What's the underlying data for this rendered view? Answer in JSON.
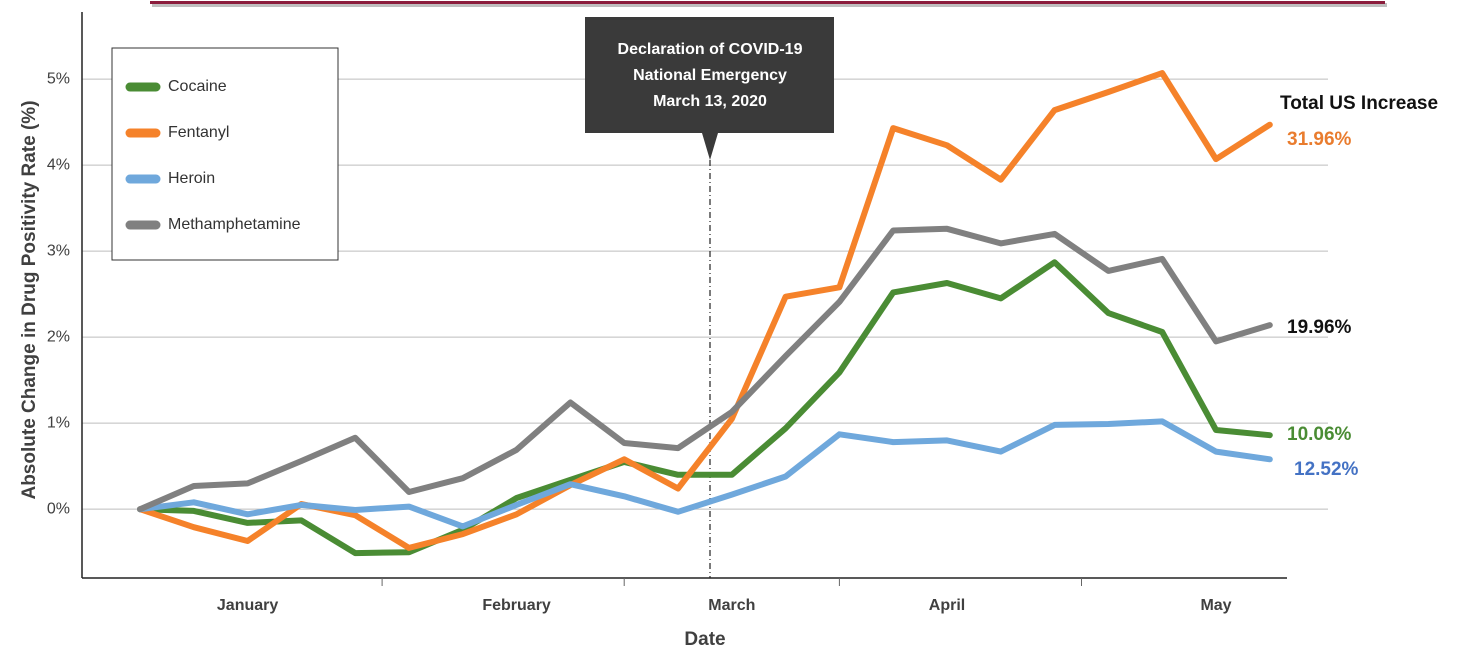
{
  "chart_data": {
    "type": "line",
    "y_label": "Absolute Change in Drug Positivity Rate (%)",
    "x_label": "Date",
    "categories": [
      null,
      null,
      "January",
      null,
      null,
      null,
      null,
      "February",
      null,
      null,
      null,
      "March",
      null,
      null,
      null,
      "April",
      null,
      null,
      null,
      null,
      "May",
      null
    ],
    "ylim": [
      -0.8,
      5.78
    ],
    "yticks": [
      {
        "value": 0,
        "label": "0%"
      },
      {
        "value": 1,
        "label": "1%"
      },
      {
        "value": 2,
        "label": "2%"
      },
      {
        "value": 3,
        "label": "3%"
      },
      {
        "value": 4,
        "label": "4%"
      },
      {
        "value": 5,
        "label": "5%"
      }
    ],
    "grid": true,
    "legend": "upper left",
    "annotation": {
      "lines": [
        "Declaration of COVID-19",
        "National Emergency",
        "March 13, 2020"
      ]
    },
    "end_title": "Total US Increase",
    "series": [
      {
        "name": "Cocaine",
        "color": "#4a8c34",
        "end_label": "10.06%",
        "end_color": "#4a8c34",
        "values": [
          0,
          -0.02,
          -0.16,
          -0.13,
          -0.51,
          -0.5,
          -0.24,
          0.13,
          0.34,
          0.55,
          0.4,
          0.4,
          0.94,
          1.59,
          2.52,
          2.63,
          2.45,
          2.87,
          2.28,
          2.06,
          0.92,
          0.86
        ]
      },
      {
        "name": "Fentanyl",
        "color": "#f5822a",
        "end_label": "31.96%",
        "end_color": "#e97c2e",
        "values": [
          0,
          -0.21,
          -0.37,
          0.06,
          -0.07,
          -0.45,
          -0.29,
          -0.06,
          0.28,
          0.58,
          0.24,
          1.05,
          2.47,
          2.58,
          4.43,
          4.23,
          3.83,
          4.64,
          4.85,
          5.07,
          4.07,
          4.47
        ]
      },
      {
        "name": "Heroin",
        "color": "#6fa8dc",
        "end_label": "12.52%",
        "end_color": "#4472c4",
        "values": [
          0,
          0.08,
          -0.06,
          0.05,
          -0.01,
          0.03,
          -0.2,
          0.05,
          0.29,
          0.15,
          -0.03,
          0.17,
          0.38,
          0.87,
          0.78,
          0.8,
          0.67,
          0.98,
          0.99,
          1.02,
          0.67,
          0.58
        ]
      },
      {
        "name": "Methamphetamine",
        "color": "#808080",
        "end_label": "19.96%",
        "end_color": "#111111",
        "values": [
          0,
          0.27,
          0.3,
          0.56,
          0.83,
          0.2,
          0.36,
          0.69,
          1.24,
          0.77,
          0.71,
          1.13,
          1.78,
          2.41,
          3.24,
          3.26,
          3.09,
          3.2,
          2.77,
          2.91,
          1.95,
          2.14
        ]
      }
    ]
  }
}
